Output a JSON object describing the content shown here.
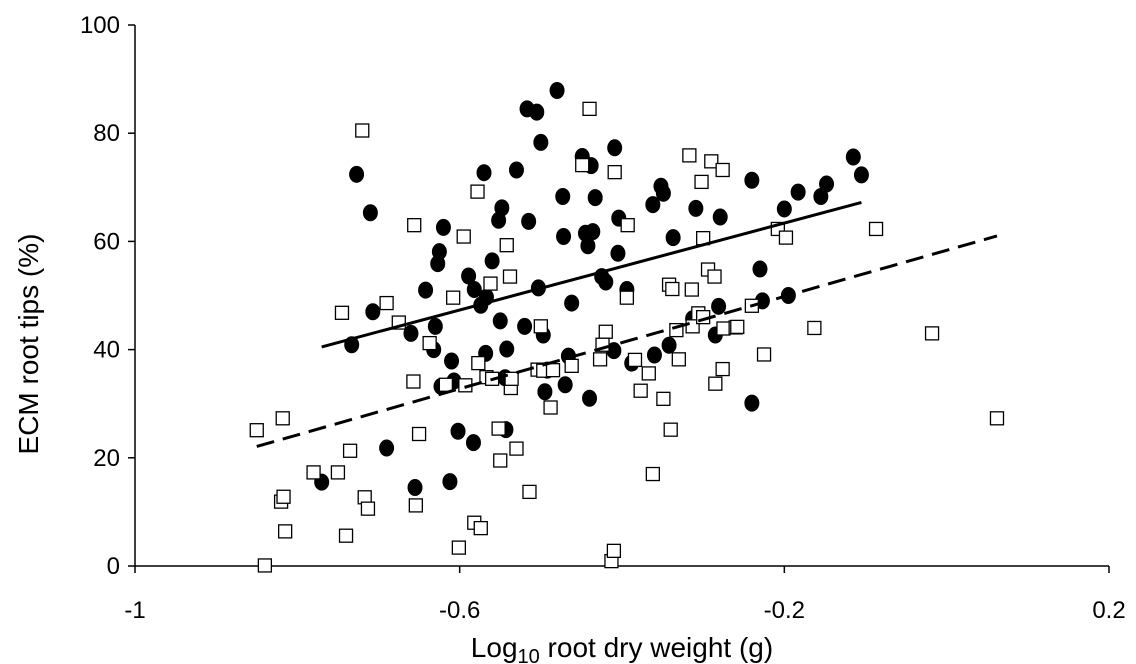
{
  "chart_data": {
    "type": "scatter",
    "title": "",
    "xlabel": {
      "prefix": "Log",
      "subscript": "10",
      "suffix": " root dry weight (g)"
    },
    "ylabel": "ECM root tips (%)",
    "xlim": [
      -1,
      0.2
    ],
    "ylim": [
      0,
      100
    ],
    "x_ticks": [
      -1,
      -0.6,
      -0.2,
      0.2
    ],
    "x_tick_labels": [
      "-1",
      "-0.6",
      "-0.2",
      "0.2"
    ],
    "y_ticks": [
      0,
      20,
      40,
      60,
      80,
      100
    ],
    "y_tick_labels": [
      "0",
      "20",
      "40",
      "60",
      "80",
      "100"
    ],
    "grid": false,
    "legend": "none",
    "series": [
      {
        "marker": "filled-circle",
        "color": "#000000",
        "points": [
          [
            -0.77,
            15.5
          ],
          [
            -0.727,
            72.4
          ],
          [
            -0.733,
            40.9
          ],
          [
            -0.71,
            65.3
          ],
          [
            -0.707,
            47
          ],
          [
            -0.69,
            21.8
          ],
          [
            -0.66,
            43
          ],
          [
            -0.655,
            14.5
          ],
          [
            -0.642,
            51
          ],
          [
            -0.632,
            40
          ],
          [
            -0.63,
            44.3
          ],
          [
            -0.627,
            55.9
          ],
          [
            -0.625,
            58.1
          ],
          [
            -0.623,
            33.2
          ],
          [
            -0.62,
            62.6
          ],
          [
            -0.612,
            15.6
          ],
          [
            -0.61,
            37.9
          ],
          [
            -0.607,
            34.2
          ],
          [
            -0.602,
            24.9
          ],
          [
            -0.589,
            53.6
          ],
          [
            -0.583,
            22.8
          ],
          [
            -0.582,
            51.1
          ],
          [
            -0.574,
            48.2
          ],
          [
            -0.57,
            72.7
          ],
          [
            -0.568,
            39.3
          ],
          [
            -0.567,
            49.7
          ],
          [
            -0.56,
            56.4
          ],
          [
            -0.552,
            63.9
          ],
          [
            -0.55,
            45.3
          ],
          [
            -0.548,
            66.2
          ],
          [
            -0.544,
            34.8
          ],
          [
            -0.543,
            25.2
          ],
          [
            -0.542,
            40.1
          ],
          [
            -0.53,
            73.2
          ],
          [
            -0.52,
            44.3
          ],
          [
            -0.517,
            84.5
          ],
          [
            -0.515,
            63.7
          ],
          [
            -0.505,
            83.9
          ],
          [
            -0.503,
            51.4
          ],
          [
            -0.5,
            78.3
          ],
          [
            -0.497,
            42.7
          ],
          [
            -0.495,
            32.2
          ],
          [
            -0.492,
            36.2
          ],
          [
            -0.48,
            87.9
          ],
          [
            -0.473,
            68.3
          ],
          [
            -0.472,
            60.9
          ],
          [
            -0.47,
            33.5
          ],
          [
            -0.466,
            38.8
          ],
          [
            -0.462,
            48.6
          ],
          [
            -0.449,
            75.7
          ],
          [
            -0.445,
            61.5
          ],
          [
            -0.442,
            59.2
          ],
          [
            -0.44,
            31
          ],
          [
            -0.438,
            74
          ],
          [
            -0.436,
            61.8
          ],
          [
            -0.433,
            68.1
          ],
          [
            -0.425,
            53.5
          ],
          [
            -0.42,
            52.5
          ],
          [
            -0.41,
            39.8
          ],
          [
            -0.409,
            77.3
          ],
          [
            -0.405,
            57.8
          ],
          [
            -0.404,
            64.3
          ],
          [
            -0.394,
            51.1
          ],
          [
            -0.388,
            37.5
          ],
          [
            -0.362,
            66.8
          ],
          [
            -0.36,
            39
          ],
          [
            -0.352,
            70.2
          ],
          [
            -0.349,
            68.9
          ],
          [
            -0.342,
            40.8
          ],
          [
            -0.337,
            60.7
          ],
          [
            -0.313,
            45.7
          ],
          [
            -0.309,
            66.1
          ],
          [
            -0.285,
            42.7
          ],
          [
            -0.281,
            48
          ],
          [
            -0.279,
            64.5
          ],
          [
            -0.24,
            30.1
          ],
          [
            -0.24,
            71.3
          ],
          [
            -0.23,
            54.9
          ],
          [
            -0.227,
            49
          ],
          [
            -0.2,
            66
          ],
          [
            -0.195,
            50
          ],
          [
            -0.183,
            69.1
          ],
          [
            -0.155,
            68.3
          ],
          [
            -0.148,
            70.6
          ],
          [
            -0.115,
            75.6
          ],
          [
            -0.105,
            72.3
          ]
        ]
      },
      {
        "marker": "open-square",
        "color": "#000000",
        "points": [
          [
            -0.85,
            25.1
          ],
          [
            -0.84,
            0.1
          ],
          [
            -0.82,
            11.9
          ],
          [
            -0.818,
            27.3
          ],
          [
            -0.815,
            6.4
          ],
          [
            -0.817,
            12.8
          ],
          [
            -0.78,
            17.3
          ],
          [
            -0.75,
            17.3
          ],
          [
            -0.745,
            46.8
          ],
          [
            -0.74,
            5.6
          ],
          [
            -0.735,
            21.3
          ],
          [
            -0.72,
            80.5
          ],
          [
            -0.717,
            12.7
          ],
          [
            -0.713,
            10.6
          ],
          [
            -0.69,
            48.6
          ],
          [
            -0.675,
            45
          ],
          [
            -0.657,
            34.1
          ],
          [
            -0.656,
            63
          ],
          [
            -0.654,
            11.2
          ],
          [
            -0.65,
            24.4
          ],
          [
            -0.637,
            41.2
          ],
          [
            -0.617,
            33.5
          ],
          [
            -0.608,
            49.6
          ],
          [
            -0.601,
            3.4
          ],
          [
            -0.595,
            60.9
          ],
          [
            -0.593,
            33.4
          ],
          [
            -0.582,
            8
          ],
          [
            -0.578,
            69.2
          ],
          [
            -0.577,
            37.5
          ],
          [
            -0.574,
            7
          ],
          [
            -0.567,
            34.9
          ],
          [
            -0.562,
            52.2
          ],
          [
            -0.56,
            34.6
          ],
          [
            -0.552,
            25.4
          ],
          [
            -0.55,
            19.5
          ],
          [
            -0.542,
            59.3
          ],
          [
            -0.538,
            53.5
          ],
          [
            -0.537,
            32.9
          ],
          [
            -0.536,
            34.6
          ],
          [
            -0.53,
            21.7
          ],
          [
            -0.514,
            13.7
          ],
          [
            -0.504,
            36.3
          ],
          [
            -0.5,
            44.3
          ],
          [
            -0.497,
            36.1
          ],
          [
            -0.488,
            29.3
          ],
          [
            -0.485,
            36.2
          ],
          [
            -0.462,
            37
          ],
          [
            -0.449,
            74.1
          ],
          [
            -0.44,
            84.5
          ],
          [
            -0.427,
            38.2
          ],
          [
            -0.42,
            43.3
          ],
          [
            -0.424,
            40.9
          ],
          [
            -0.413,
            0.9
          ],
          [
            -0.41,
            2.8
          ],
          [
            -0.409,
            72.8
          ],
          [
            -0.393,
            63
          ],
          [
            -0.394,
            49.6
          ],
          [
            -0.384,
            38.1
          ],
          [
            -0.377,
            32.4
          ],
          [
            -0.367,
            35.6
          ],
          [
            -0.362,
            17
          ],
          [
            -0.349,
            30.9
          ],
          [
            -0.342,
            52
          ],
          [
            -0.34,
            25.2
          ],
          [
            -0.338,
            51.2
          ],
          [
            -0.333,
            43.6
          ],
          [
            -0.33,
            38.2
          ],
          [
            -0.317,
            75.9
          ],
          [
            -0.314,
            51.1
          ],
          [
            -0.313,
            44.3
          ],
          [
            -0.306,
            46.7
          ],
          [
            -0.302,
            71
          ],
          [
            -0.3,
            46
          ],
          [
            -0.3,
            60.6
          ],
          [
            -0.294,
            54.8
          ],
          [
            -0.29,
            74.8
          ],
          [
            -0.286,
            53.5
          ],
          [
            -0.285,
            33.7
          ],
          [
            -0.276,
            73.2
          ],
          [
            -0.276,
            36.4
          ],
          [
            -0.275,
            43.9
          ],
          [
            -0.26,
            44.1
          ],
          [
            -0.258,
            44.2
          ],
          [
            -0.24,
            48.1
          ],
          [
            -0.225,
            39.1
          ],
          [
            -0.208,
            62.3
          ],
          [
            -0.198,
            60.7
          ],
          [
            -0.163,
            44
          ],
          [
            -0.087,
            62.3
          ],
          [
            -0.018,
            43
          ],
          [
            0.062,
            27.3
          ]
        ]
      }
    ],
    "trendlines": [
      {
        "style": "solid",
        "from": [
          -0.77,
          40.5
        ],
        "to": [
          -0.105,
          67.2
        ]
      },
      {
        "style": "dashed",
        "from": [
          -0.85,
          22.1
        ],
        "to": [
          0.062,
          61
        ]
      }
    ]
  }
}
